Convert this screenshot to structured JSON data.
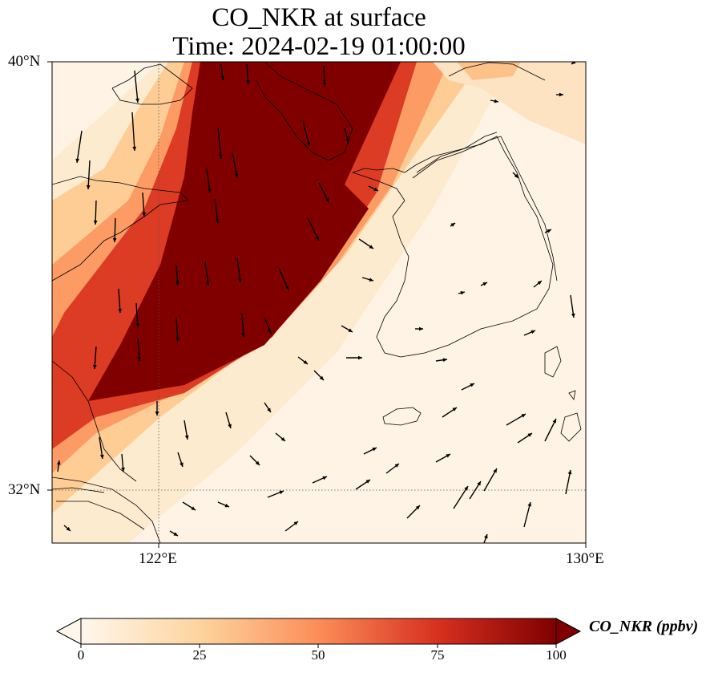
{
  "title": {
    "line1": "CO_NKR at surface",
    "line2": "Time: 2024-02-19 01:00:00"
  },
  "map": {
    "lon_range": [
      121,
      130
    ],
    "lat_range": [
      31,
      40
    ],
    "lon_ticks": [
      {
        "value": 122,
        "label": "122°E"
      },
      {
        "value": 130,
        "label": "130°E"
      }
    ],
    "lat_ticks": [
      {
        "value": 40,
        "label": "40°N"
      },
      {
        "value": 32,
        "label": "32°N"
      }
    ],
    "gridlines": "dotted",
    "colormap": "OrRd",
    "colors": {
      "low": "#fff7ec",
      "mid_low": "#fdd49e",
      "mid": "#fc8d59",
      "mid_high": "#d7301f",
      "high": "#7f0000"
    },
    "wind_vectors": "shown"
  },
  "colorbar": {
    "label": "CO_NKR (ppbv)",
    "range": [
      0,
      100
    ],
    "extend": "both",
    "ticks": [
      "0",
      "25",
      "50",
      "75",
      "100"
    ]
  }
}
